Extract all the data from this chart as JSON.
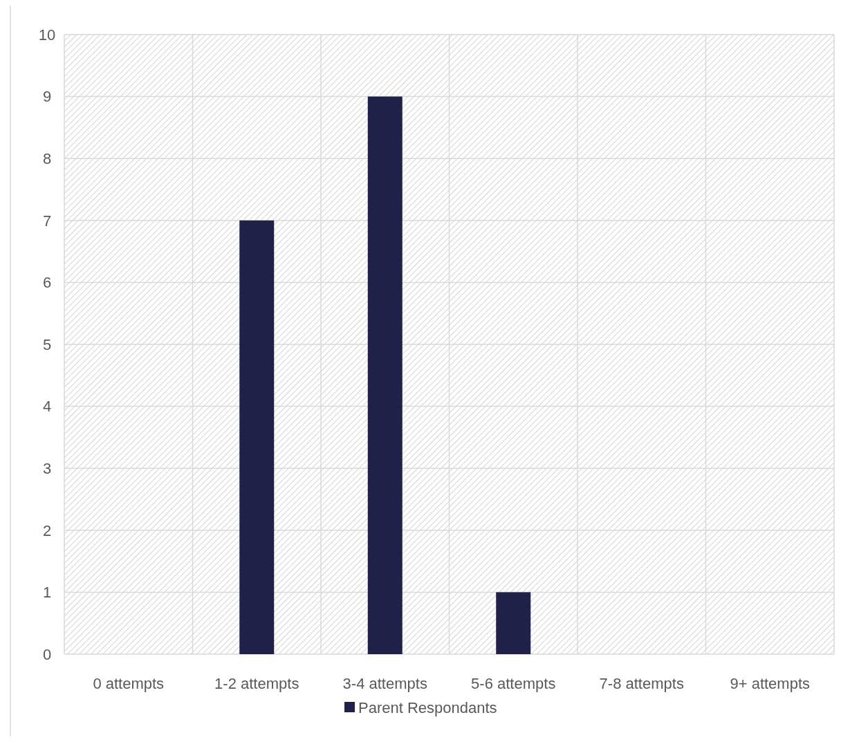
{
  "chart_data": {
    "type": "bar",
    "categories": [
      "0 attempts",
      "1-2 attempts",
      "3-4 attempts",
      "5-6 attempts",
      "7-8 attempts",
      "9+ attempts"
    ],
    "series": [
      {
        "name": "Parent Respondants",
        "color": "#1f2148",
        "values": [
          0,
          7,
          9,
          1,
          0,
          0
        ]
      }
    ],
    "ylim": [
      0,
      10
    ],
    "yticks": [
      0,
      1,
      2,
      3,
      4,
      5,
      6,
      7,
      8,
      9,
      10
    ],
    "grid": true,
    "legend": "bottom"
  }
}
